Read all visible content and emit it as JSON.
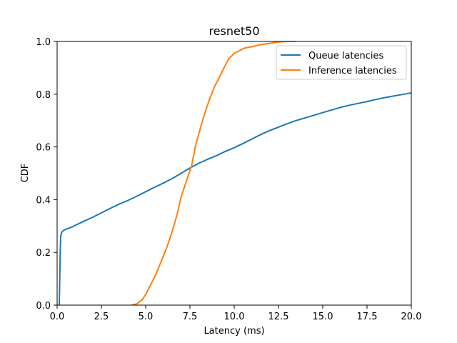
{
  "chart_data": {
    "type": "line",
    "title": "resnet50",
    "xlabel": "Latency (ms)",
    "ylabel": "CDF",
    "xlim": [
      0,
      20
    ],
    "ylim": [
      0,
      1
    ],
    "xticks": [
      "0.0",
      "2.5",
      "5.0",
      "7.5",
      "10.0",
      "12.5",
      "15.0",
      "17.5",
      "20.0"
    ],
    "xtick_values": [
      0,
      2.5,
      5,
      7.5,
      10,
      12.5,
      15,
      17.5,
      20
    ],
    "yticks": [
      "0.0",
      "0.2",
      "0.4",
      "0.6",
      "0.8",
      "1.0"
    ],
    "ytick_values": [
      0,
      0.2,
      0.4,
      0.6,
      0.8,
      1.0
    ],
    "grid": false,
    "legend_position": "top-right",
    "series": [
      {
        "name": "Queue latencies",
        "color": "#1f77b4",
        "x": [
          0.12,
          0.15,
          0.18,
          0.2,
          0.25,
          0.35,
          0.5,
          0.8,
          1.0,
          1.5,
          2.0,
          2.5,
          3.0,
          3.5,
          4.0,
          4.5,
          5.0,
          5.5,
          6.0,
          6.5,
          7.0,
          7.5,
          8.0,
          8.5,
          9.0,
          9.5,
          10.0,
          10.5,
          11.0,
          11.5,
          12.0,
          12.5,
          13.0,
          13.5,
          14.0,
          14.5,
          15.0,
          15.5,
          16.0,
          16.5,
          17.0,
          17.5,
          18.0,
          18.5,
          19.0,
          19.5,
          20.0
        ],
        "y": [
          0.0,
          0.1,
          0.22,
          0.26,
          0.275,
          0.283,
          0.288,
          0.295,
          0.302,
          0.318,
          0.333,
          0.35,
          0.367,
          0.383,
          0.397,
          0.413,
          0.43,
          0.447,
          0.463,
          0.48,
          0.5,
          0.52,
          0.538,
          0.553,
          0.567,
          0.583,
          0.597,
          0.613,
          0.63,
          0.647,
          0.662,
          0.675,
          0.688,
          0.7,
          0.71,
          0.72,
          0.73,
          0.74,
          0.75,
          0.758,
          0.765,
          0.772,
          0.78,
          0.787,
          0.793,
          0.799,
          0.805
        ]
      },
      {
        "name": "Inference latencies",
        "color": "#ff7f0e",
        "x": [
          4.2,
          4.5,
          4.8,
          5.0,
          5.3,
          5.6,
          5.9,
          6.2,
          6.5,
          6.8,
          7.0,
          7.3,
          7.6,
          7.8,
          8.0,
          8.3,
          8.6,
          8.9,
          9.2,
          9.5,
          9.7,
          10.0,
          10.3,
          10.6,
          11.0,
          11.5,
          12.0,
          12.5,
          13.0,
          13.5
        ],
        "y": [
          0.0,
          0.005,
          0.02,
          0.04,
          0.08,
          0.12,
          0.17,
          0.22,
          0.28,
          0.35,
          0.41,
          0.47,
          0.53,
          0.6,
          0.65,
          0.72,
          0.78,
          0.83,
          0.87,
          0.91,
          0.935,
          0.955,
          0.965,
          0.975,
          0.98,
          0.988,
          0.993,
          0.998,
          1.0,
          1.0
        ]
      }
    ]
  }
}
